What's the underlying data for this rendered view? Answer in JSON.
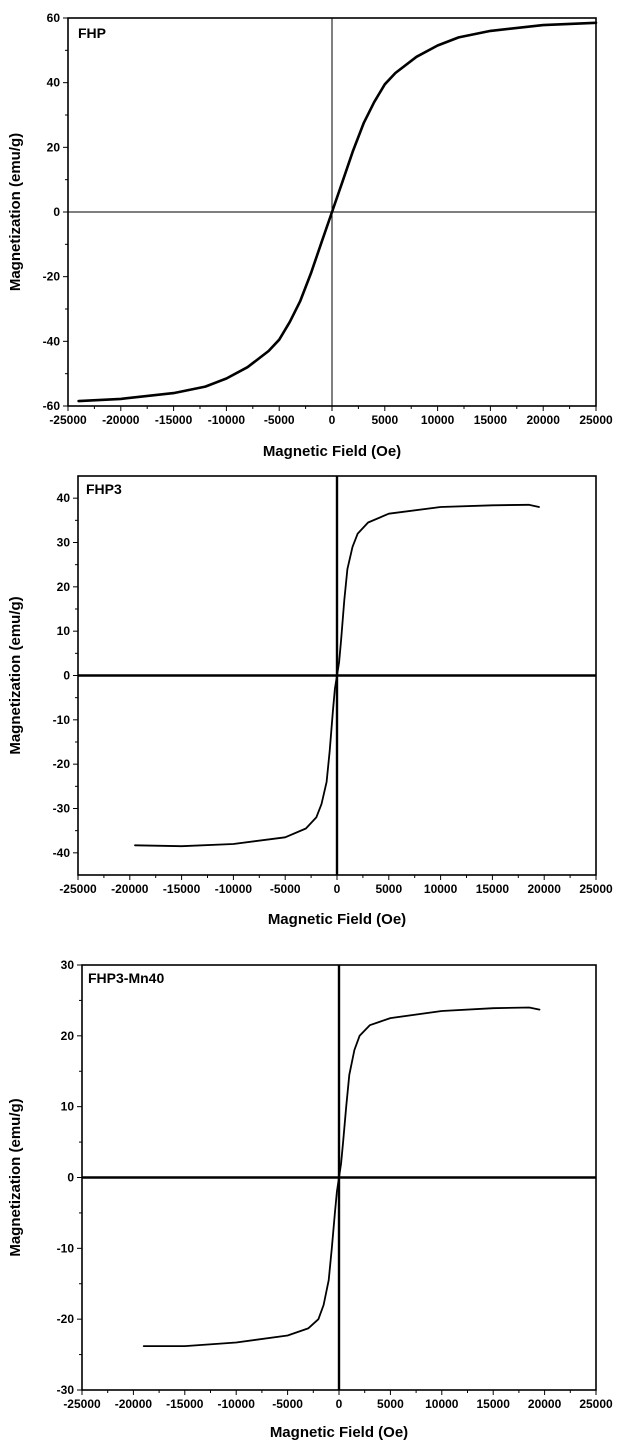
{
  "colors": {
    "background": "#ffffff",
    "ink": "#000000"
  },
  "chart_data": [
    {
      "type": "line",
      "panel_label": "FHP",
      "xlabel": "Magnetic Field (Oe)",
      "ylabel": "Magnetization (emu/g)",
      "xlim": [
        -25000,
        25000
      ],
      "ylim": [
        -60,
        60
      ],
      "xticks": [
        -25000,
        -20000,
        -15000,
        -10000,
        -5000,
        0,
        5000,
        10000,
        15000,
        20000,
        25000
      ],
      "yticks": [
        -60,
        -40,
        -20,
        0,
        20,
        40,
        60
      ],
      "grid": false,
      "series": [
        {
          "x": [
            -24000,
            -20000,
            -15000,
            -12000,
            -10000,
            -8000,
            -6000,
            -5000,
            -4000,
            -3000,
            -2000,
            -1000,
            0,
            1000,
            2000,
            3000,
            4000,
            5000,
            6000,
            8000,
            10000,
            12000,
            15000,
            20000,
            25000
          ],
          "y": [
            -58.5,
            -57.8,
            -56,
            -54,
            -51.5,
            -48,
            -43,
            -39.5,
            -34,
            -27.5,
            -19,
            -9.5,
            0,
            9.5,
            19,
            27.5,
            34,
            39.5,
            43,
            48,
            51.5,
            54,
            56,
            57.8,
            58.5
          ]
        }
      ]
    },
    {
      "type": "line",
      "panel_label": "FHP3",
      "xlabel": "Magnetic Field (Oe)",
      "ylabel": "Magnetization (emu/g)",
      "xlim": [
        -25000,
        25000
      ],
      "ylim": [
        -45,
        45
      ],
      "xticks": [
        -25000,
        -20000,
        -15000,
        -10000,
        -5000,
        0,
        5000,
        10000,
        15000,
        20000,
        25000
      ],
      "yticks": [
        -40,
        -30,
        -20,
        -10,
        0,
        10,
        20,
        30,
        40
      ],
      "grid": false,
      "series": [
        {
          "x": [
            -19500,
            -15000,
            -10000,
            -5000,
            -3000,
            -2000,
            -1500,
            -1000,
            -700,
            -400,
            -200,
            0,
            200,
            400,
            700,
            1000,
            1500,
            2000,
            3000,
            5000,
            10000,
            15000,
            18500,
            19500
          ],
          "y": [
            -38.3,
            -38.5,
            -38,
            -36.5,
            -34.5,
            -32,
            -29,
            -24,
            -17,
            -8,
            -3,
            0,
            3,
            8,
            17,
            24,
            29,
            32,
            34.5,
            36.5,
            38,
            38.4,
            38.5,
            38
          ]
        }
      ]
    },
    {
      "type": "line",
      "panel_label": "FHP3-Mn40",
      "xlabel": "Magnetic Field (Oe)",
      "ylabel": "Magnetization (emu/g)",
      "xlim": [
        -25000,
        25000
      ],
      "ylim": [
        -30,
        30
      ],
      "xticks": [
        -25000,
        -20000,
        -15000,
        -10000,
        -5000,
        0,
        5000,
        10000,
        15000,
        20000,
        25000
      ],
      "yticks": [
        -30,
        -20,
        -10,
        0,
        10,
        20,
        30
      ],
      "grid": false,
      "series": [
        {
          "x": [
            -19000,
            -15000,
            -10000,
            -5000,
            -3000,
            -2000,
            -1500,
            -1000,
            -700,
            -400,
            -200,
            0,
            200,
            400,
            700,
            1000,
            1500,
            2000,
            3000,
            5000,
            10000,
            15000,
            18500,
            19500
          ],
          "y": [
            -23.8,
            -23.8,
            -23.3,
            -22.3,
            -21.3,
            -20,
            -18,
            -14.5,
            -10,
            -5,
            -2,
            0,
            2,
            5,
            10,
            14.5,
            18,
            20,
            21.5,
            22.5,
            23.5,
            23.9,
            24,
            23.7
          ]
        }
      ]
    }
  ]
}
